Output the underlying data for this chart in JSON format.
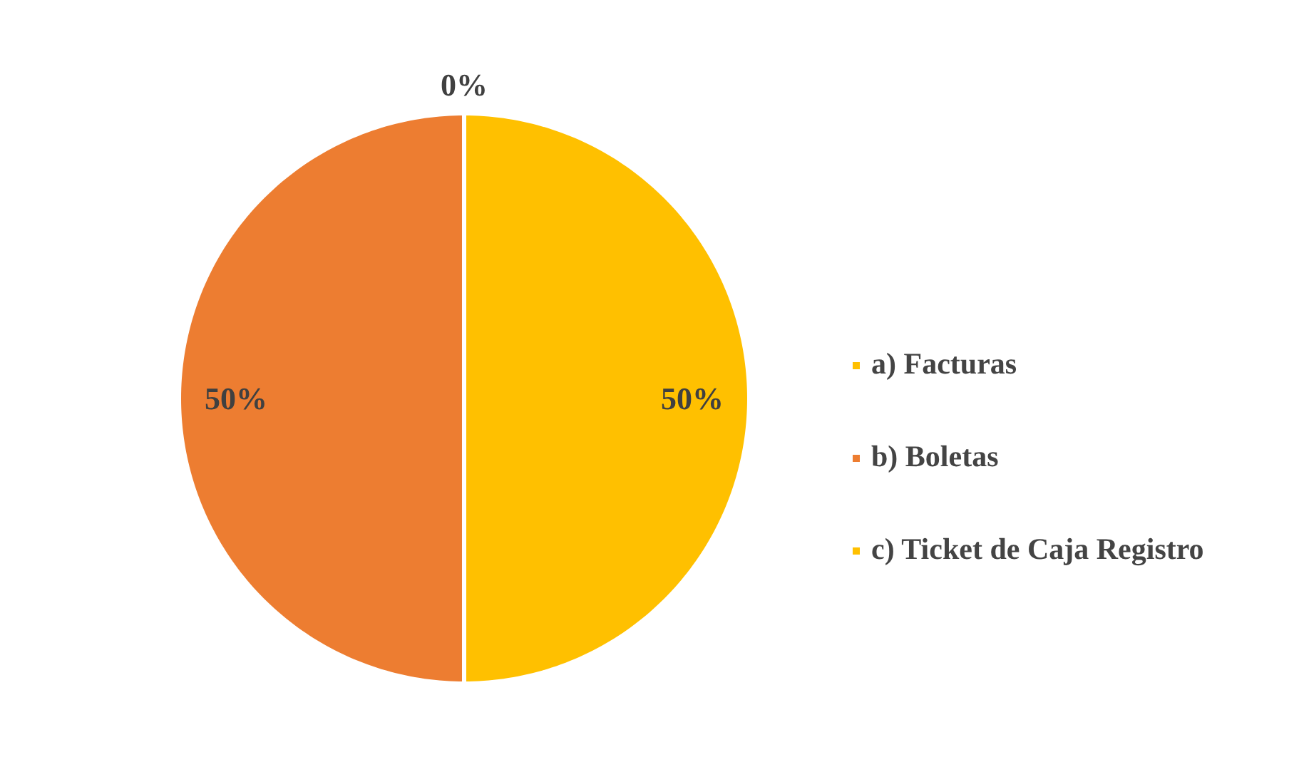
{
  "chart_data": {
    "type": "pie",
    "categories": [
      "a) Facturas",
      "b) Boletas",
      "c) Ticket de Caja Registro"
    ],
    "values": [
      50,
      50,
      0
    ],
    "colors": [
      "#ffc000",
      "#ed7d31",
      "#ffc000"
    ],
    "value_labels": [
      "50%",
      "50%",
      "0%"
    ],
    "legend": "right"
  }
}
